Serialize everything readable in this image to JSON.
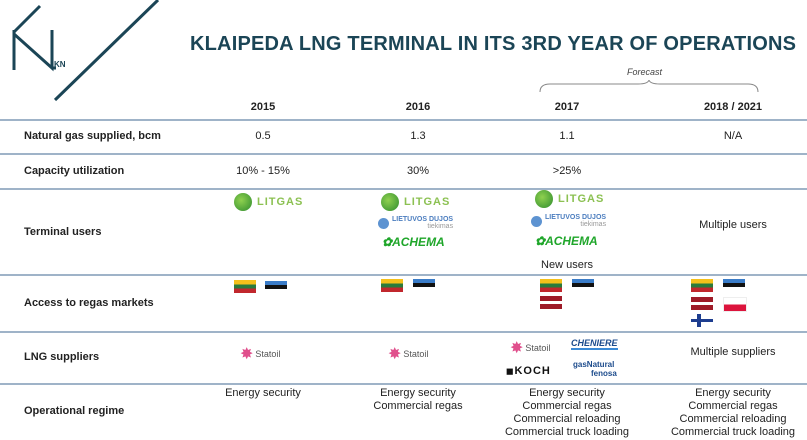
{
  "title": "KLAIPEDA LNG TERMINAL IN ITS 3RD YEAR OF OPERATIONS",
  "logo_text": "KN",
  "forecast_label": "Forecast",
  "years": [
    "2015",
    "2016",
    "2017",
    "2018 / 2021"
  ],
  "rows": {
    "gas": {
      "label": "Natural gas supplied, bcm",
      "values": [
        "0.5",
        "1.3",
        "1.1",
        "N/A"
      ]
    },
    "capacity": {
      "label": "Capacity utilization",
      "values": [
        "10% - 15%",
        "30%",
        ">25%",
        ""
      ]
    },
    "users": {
      "label": "Terminal users",
      "new_users": "New users",
      "multiple": "Multiple users",
      "logos": {
        "litgas": "LITGAS",
        "ld": "LIETUVOS DUJOS",
        "ld_sub": "tiekimas",
        "achema": "ACHEMA"
      }
    },
    "access": {
      "label": "Access to regas markets",
      "flags": [
        [
          "lithuania",
          "estonia"
        ],
        [
          "lithuania",
          "estonia"
        ],
        [
          "lithuania",
          "estonia",
          "latvia"
        ],
        [
          "lithuania",
          "estonia",
          "latvia",
          "poland",
          "finland"
        ]
      ]
    },
    "suppliers": {
      "label": "LNG suppliers",
      "multiple": "Multiple suppliers",
      "logos": {
        "statoil": "Statoil",
        "cheniere": "CHENIERE",
        "koch": "KOCH",
        "gasnatural": "gasNatural",
        "fenosa": "fenosa"
      }
    },
    "regime": {
      "label": "Operational regime",
      "values": [
        [
          "Energy security"
        ],
        [
          "Energy security",
          "Commercial regas"
        ],
        [
          "Energy security",
          "Commercial regas",
          "Commercial reloading",
          "Commercial truck loading"
        ],
        [
          "Energy security",
          "Commercial regas",
          "Commercial reloading",
          "Commercial truck loading"
        ]
      ]
    }
  },
  "colors": {
    "title": "#1b4556",
    "divider": "#9fb3c8"
  }
}
